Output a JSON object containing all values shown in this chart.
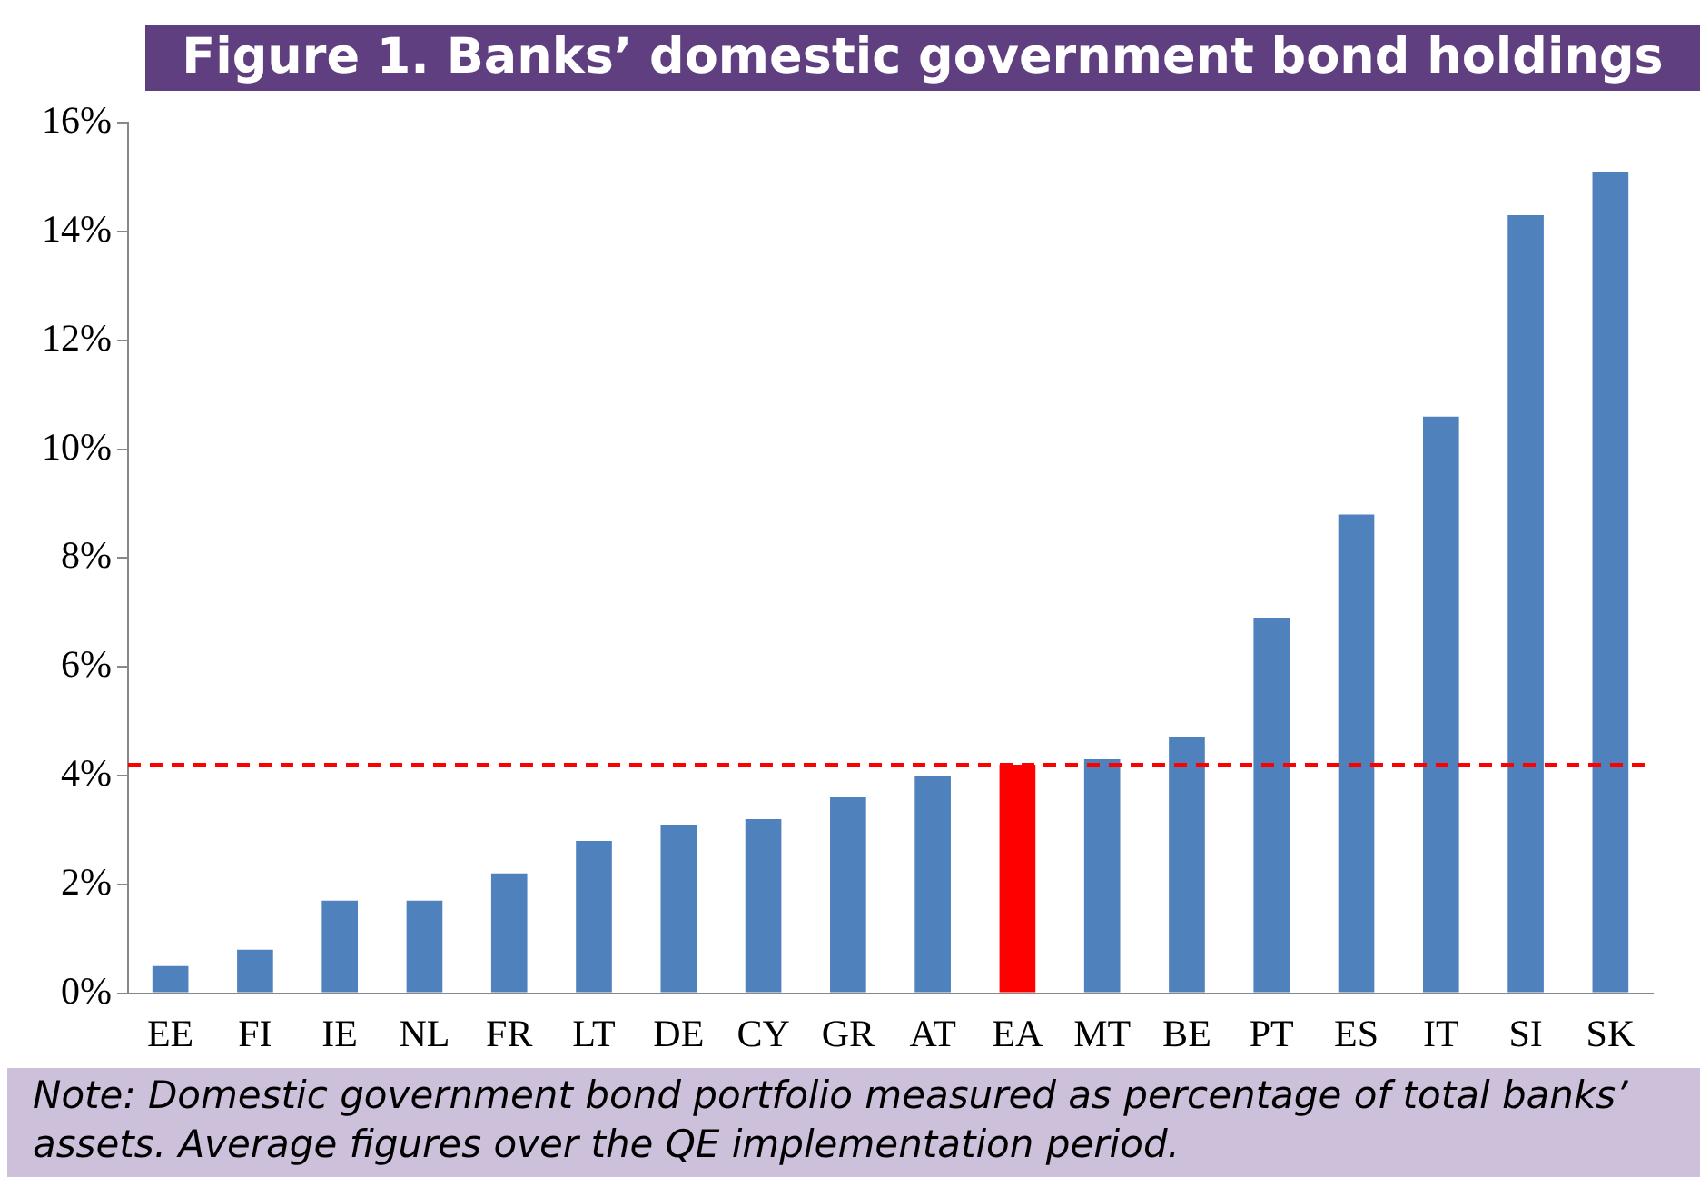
{
  "chart_data": {
    "type": "bar",
    "title": "Figure 1. Banks’ domestic government bond holdings",
    "categories": [
      "EE",
      "FI",
      "IE",
      "NL",
      "FR",
      "LT",
      "DE",
      "CY",
      "GR",
      "AT",
      "EA",
      "MT",
      "BE",
      "PT",
      "ES",
      "IT",
      "SI",
      "SK"
    ],
    "values": [
      0.5,
      0.8,
      1.7,
      1.7,
      2.2,
      2.8,
      3.1,
      3.2,
      3.6,
      4.0,
      4.2,
      4.3,
      4.7,
      6.9,
      8.8,
      10.6,
      14.3,
      15.1
    ],
    "colors": [
      "#4f81bd",
      "#4f81bd",
      "#4f81bd",
      "#4f81bd",
      "#4f81bd",
      "#4f81bd",
      "#4f81bd",
      "#4f81bd",
      "#4f81bd",
      "#4f81bd",
      "#ff0000",
      "#4f81bd",
      "#4f81bd",
      "#4f81bd",
      "#4f81bd",
      "#4f81bd",
      "#4f81bd",
      "#4f81bd"
    ],
    "ylim": [
      0,
      16
    ],
    "yticks": [
      {
        "value": 0,
        "label": "0%"
      },
      {
        "value": 2,
        "label": "2%"
      },
      {
        "value": 4,
        "label": "4%"
      },
      {
        "value": 6,
        "label": "6%"
      },
      {
        "value": 8,
        "label": "8%"
      },
      {
        "value": 10,
        "label": "10%"
      },
      {
        "value": 12,
        "label": "12%"
      },
      {
        "value": 14,
        "label": "14%"
      },
      {
        "value": 16,
        "label": "16%"
      }
    ],
    "ref_lines": [
      {
        "axis": "y",
        "value": 4.2,
        "label": null,
        "color": "#ff0000",
        "line_style": "dashed"
      }
    ],
    "grid": false,
    "legend": false,
    "annotations": [
      "Note: Domestic government bond portfolio measured as percentage of total banks’ assets. Average figures over the QE implementation period."
    ]
  }
}
